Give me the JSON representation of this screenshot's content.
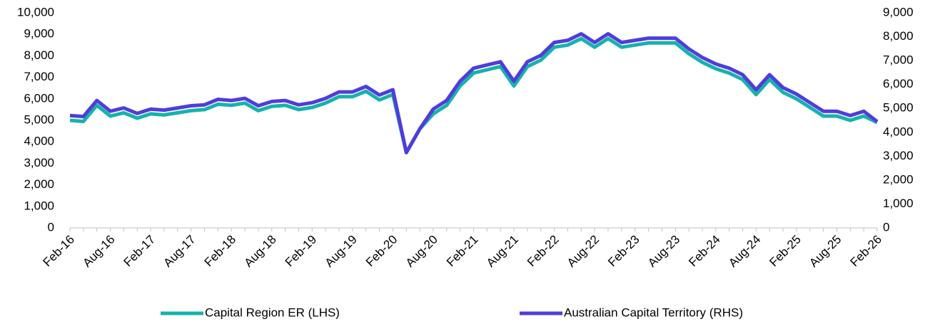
{
  "chart_data": {
    "type": "line",
    "categories": [
      "Feb-16",
      null,
      null,
      "Aug-16",
      null,
      null,
      "Feb-17",
      null,
      null,
      "Aug-17",
      null,
      null,
      "Feb-18",
      null,
      null,
      "Aug-18",
      null,
      null,
      "Feb-19",
      null,
      null,
      "Aug-19",
      null,
      null,
      "Feb-20",
      null,
      null,
      "Aug-20",
      null,
      null,
      "Feb-21",
      null,
      null,
      "Aug-21",
      null,
      null,
      "Feb-22",
      null,
      null,
      "Aug-22",
      null,
      null,
      "Feb-23",
      null,
      null,
      "Aug-23",
      null,
      null,
      "Feb-24",
      null,
      null,
      "Aug-24",
      null,
      null,
      "Feb-25",
      null,
      null,
      "Aug-25",
      null,
      null,
      "Feb-26"
    ],
    "series": [
      {
        "name": "Capital Region ER (LHS)",
        "color": "#17b2ac",
        "axis": "y",
        "values": [
          5000,
          4950,
          5700,
          5200,
          5350,
          5100,
          5300,
          5250,
          5350,
          5450,
          5500,
          5750,
          5700,
          5800,
          5450,
          5650,
          5700,
          5500,
          5600,
          5800,
          6100,
          6100,
          6350,
          5950,
          6200,
          3500,
          4600,
          5300,
          5700,
          6600,
          7200,
          7350,
          7500,
          6600,
          7500,
          7800,
          8400,
          8500,
          8800,
          8400,
          8800,
          8400,
          8500,
          8600,
          8600,
          8600,
          8100,
          7700,
          7400,
          7200,
          6900,
          6200,
          6900,
          6300,
          6000,
          5600,
          5200,
          5200,
          5000,
          5200,
          4900
        ]
      },
      {
        "name": "Australian Capital Territory (RHS)",
        "color": "#4f3ddb",
        "axis": "y2",
        "values": [
          4700,
          4660,
          5330,
          4880,
          5020,
          4790,
          4970,
          4930,
          5020,
          5110,
          5150,
          5380,
          5330,
          5420,
          5110,
          5290,
          5330,
          5150,
          5240,
          5420,
          5690,
          5690,
          5920,
          5560,
          5780,
          3150,
          4140,
          4970,
          5330,
          6140,
          6680,
          6820,
          6950,
          6140,
          6950,
          7220,
          7760,
          7850,
          8120,
          7760,
          8120,
          7760,
          7850,
          7940,
          7940,
          7940,
          7490,
          7130,
          6860,
          6680,
          6410,
          5780,
          6410,
          5870,
          5600,
          5240,
          4880,
          4880,
          4700,
          4880,
          4450
        ]
      }
    ],
    "ylim": [
      0,
      10000
    ],
    "yticks": [
      0,
      {
        "value": 1000,
        "label": "1,000"
      },
      {
        "value": 2000,
        "label": "2,000"
      },
      {
        "value": 3000,
        "label": "3,000"
      },
      {
        "value": 4000,
        "label": "4,000"
      },
      {
        "value": 5000,
        "label": "5,000"
      },
      {
        "value": 6000,
        "label": "6,000"
      },
      {
        "value": 7000,
        "label": "7,000"
      },
      {
        "value": 8000,
        "label": "8,000"
      },
      {
        "value": 9000,
        "label": "9,000"
      },
      {
        "value": 10000,
        "label": "10,000"
      }
    ],
    "y2lim": [
      0,
      9000
    ],
    "y2ticks": [
      0,
      {
        "value": 1000,
        "label": "1,000"
      },
      {
        "value": 2000,
        "label": "2,000"
      },
      {
        "value": 3000,
        "label": "3,000"
      },
      {
        "value": 4000,
        "label": "4,000"
      },
      {
        "value": 5000,
        "label": "5,000"
      },
      {
        "value": 6000,
        "label": "6,000"
      },
      {
        "value": 7000,
        "label": "7,000"
      },
      {
        "value": 8000,
        "label": "8,000"
      },
      {
        "value": 9000,
        "label": "9,000"
      }
    ],
    "grid": false,
    "legend": "bottom"
  }
}
